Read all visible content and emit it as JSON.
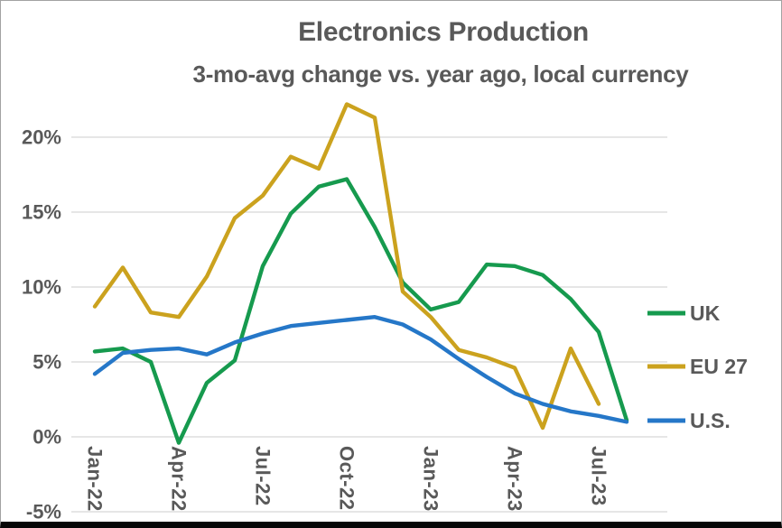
{
  "window": {
    "background": "#FFFFFF",
    "border_color": "#A2A2A2",
    "bottom_bar_color": "#060606"
  },
  "text_color": "#595959",
  "gridline_color": "#D6D6D6",
  "chart_data": {
    "type": "line",
    "title": "Electronics Production",
    "subtitle": "3-mo-avg change vs. year ago, local currency",
    "grid": "horizontal",
    "legend_position": "right",
    "ylim": [
      -5,
      22.5
    ],
    "y_ticks": [
      -5,
      0,
      5,
      10,
      15,
      20
    ],
    "y_tick_labels": [
      "-5%",
      "0%",
      "5%",
      "10%",
      "15%",
      "20%"
    ],
    "x_tick_every": 3,
    "x_tick_labels": [
      "Jan-22",
      "Apr-22",
      "Jul-22",
      "Oct-22",
      "Jan-23",
      "Apr-23",
      "Jul-23"
    ],
    "categories": [
      "Jan-22",
      "Feb-22",
      "Mar-22",
      "Apr-22",
      "May-22",
      "Jun-22",
      "Jul-22",
      "Aug-22",
      "Sep-22",
      "Oct-22",
      "Nov-22",
      "Dec-22",
      "Jan-23",
      "Feb-23",
      "Mar-23",
      "Apr-23",
      "May-23",
      "Jun-23",
      "Jul-23",
      "Aug-23"
    ],
    "series": [
      {
        "name": "UK",
        "color": "#169A4E",
        "values": [
          5.7,
          5.9,
          5.0,
          -0.4,
          3.6,
          5.1,
          11.4,
          14.9,
          16.7,
          17.2,
          14.0,
          10.3,
          8.5,
          9.0,
          11.5,
          11.4,
          10.8,
          9.2,
          7.0,
          1.1
        ]
      },
      {
        "name": "EU 27",
        "color": "#CBA21E",
        "values": [
          8.7,
          11.3,
          8.3,
          8.0,
          10.7,
          14.6,
          16.1,
          18.7,
          17.9,
          22.2,
          21.3,
          9.7,
          8.0,
          5.8,
          5.3,
          4.6,
          0.6,
          5.9,
          2.2,
          null
        ]
      },
      {
        "name": "U.S.",
        "color": "#2577C8",
        "values": [
          4.2,
          5.6,
          5.8,
          5.9,
          5.5,
          6.3,
          6.9,
          7.4,
          7.6,
          7.8,
          8.0,
          7.5,
          6.5,
          5.2,
          4.0,
          2.9,
          2.2,
          1.7,
          1.4,
          1.0
        ]
      }
    ]
  }
}
